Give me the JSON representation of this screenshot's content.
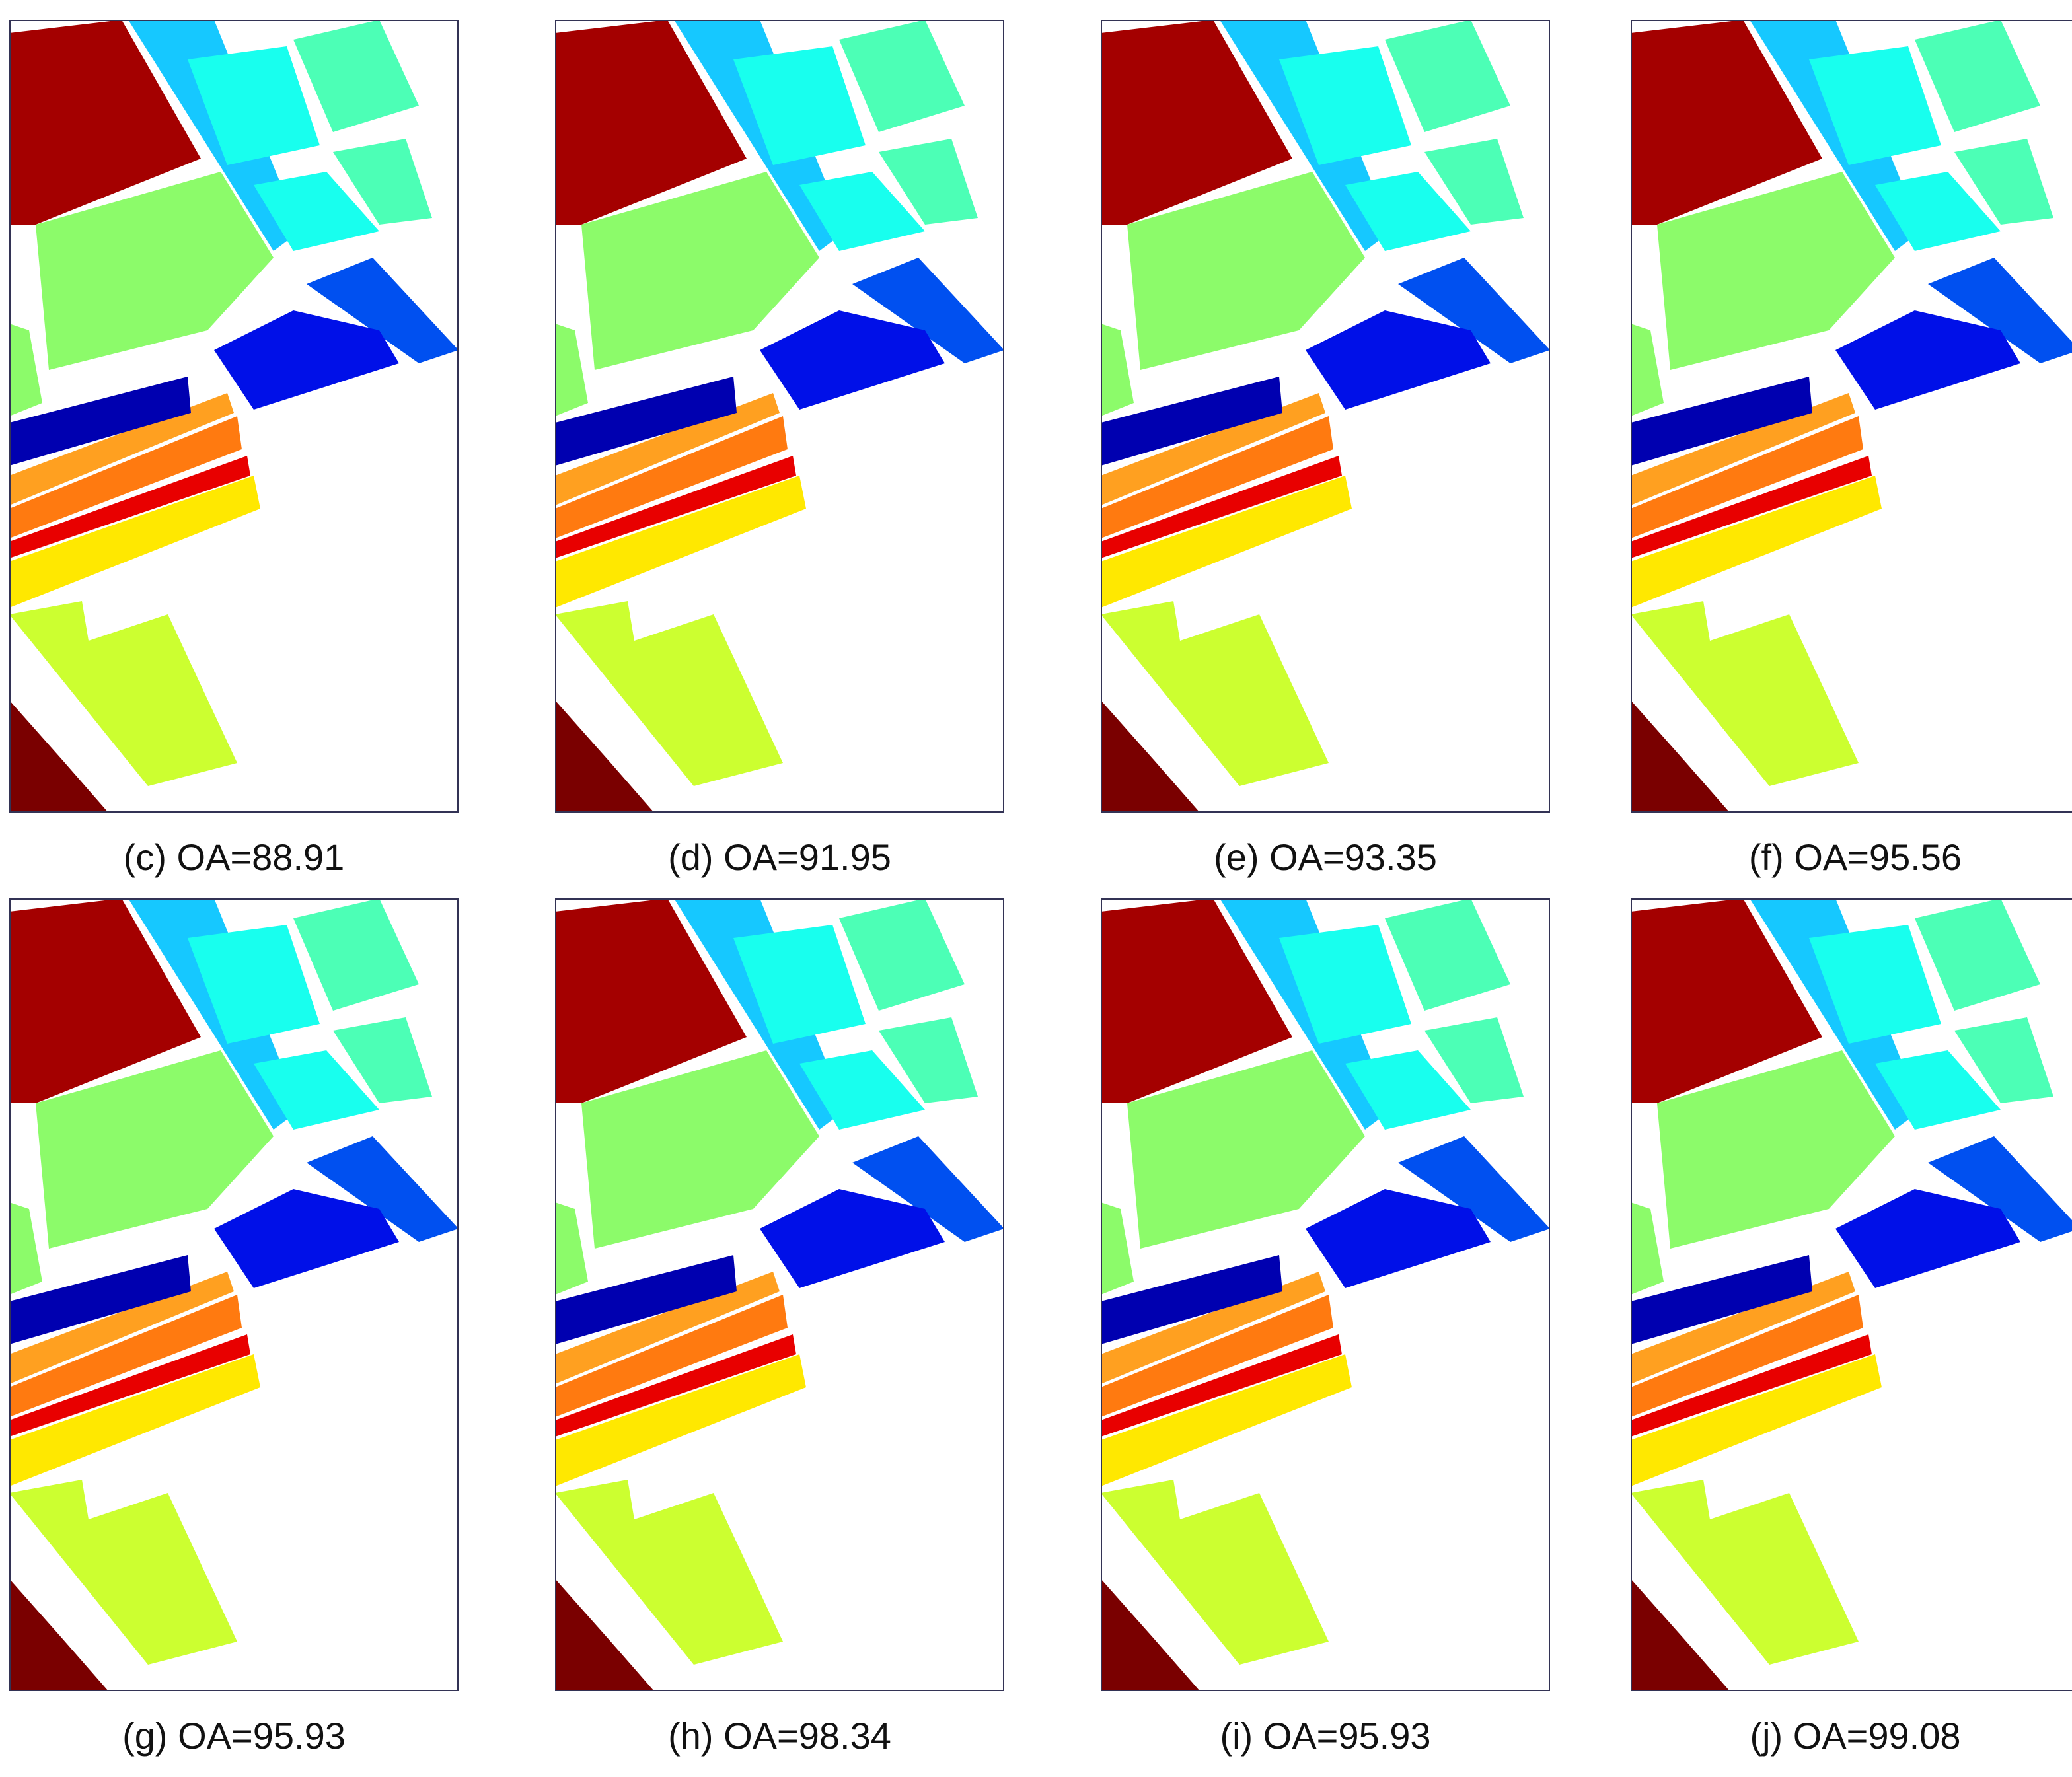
{
  "figure": {
    "panels": [
      {
        "caption": "(c) OA=88.91"
      },
      {
        "caption": "(d) OA=91.95"
      },
      {
        "caption": "(e) OA=93.35"
      },
      {
        "caption": "(f) OA=95.56"
      },
      {
        "caption": "(g) OA=95.93"
      },
      {
        "caption": "(h) OA=98.34"
      },
      {
        "caption": "(i) OA=95.93"
      },
      {
        "caption": "(j) OA=99.08"
      }
    ]
  },
  "class_colors": {
    "dark_red": "#a40000",
    "maroon": "#7a0000",
    "green": "#8cfb6a",
    "light_blue": "#16c8ff",
    "blue_mid": "#16a0ee",
    "cyan": "#18ffee",
    "aquamarine": "#4cffb6",
    "royal_blue": "#0050f0",
    "blue": "#0010e8",
    "navy": "#0000b0",
    "orange_light": "#ffa020",
    "orange": "#ff7a10",
    "red_orange": "#ff4010",
    "red": "#e80000",
    "yellow": "#ffe800",
    "yellow_green": "#ccff30",
    "lavender": "#7474ff"
  }
}
